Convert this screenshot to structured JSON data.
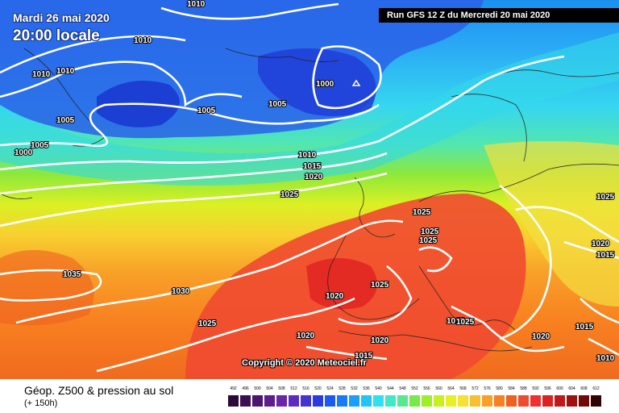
{
  "header": {
    "date_line": "Mardi 26 mai 2020",
    "time_line": "20:00 locale",
    "run_info": "Run GFS 12 Z du Mercredi 20 mai 2020"
  },
  "footer": {
    "product_title": "Géop. Z500 & pression au sol",
    "lead_time": "(+ 150h)",
    "copyright": "Copyright © 2020 Meteociel.fr"
  },
  "isobar_labels": [
    "1010",
    "1010",
    "1010",
    "1010",
    "1005",
    "1000",
    "1005",
    "1005",
    "1000",
    "1005",
    "1010",
    "1015",
    "1020",
    "1025",
    "1025",
    "1025",
    "1025",
    "1035",
    "1030",
    "1025",
    "1020",
    "1025",
    "1020",
    "1020",
    "1015",
    "1015",
    "1025",
    "1025",
    "1020",
    "1015",
    "1020",
    "1015",
    "1010"
  ],
  "legend": {
    "labels": [
      "492",
      "496",
      "500",
      "504",
      "508",
      "512",
      "516",
      "520",
      "524",
      "528",
      "532",
      "536",
      "540",
      "544",
      "548",
      "552",
      "556",
      "560",
      "564",
      "568",
      "572",
      "576",
      "580",
      "584",
      "588",
      "592",
      "596",
      "600",
      "604",
      "608",
      "612"
    ],
    "colors": [
      "#2b0a3a",
      "#3c0f55",
      "#4e1570",
      "#5f1c8c",
      "#6a25a8",
      "#5c2cc0",
      "#4434d0",
      "#2a3ce0",
      "#1a5af0",
      "#1a7cf5",
      "#1aa0f8",
      "#22c4f8",
      "#2ee0f0",
      "#40e8c8",
      "#58e890",
      "#78ea48",
      "#a0ee28",
      "#c8f020",
      "#e8f020",
      "#f8e030",
      "#f8c030",
      "#f8a028",
      "#f88020",
      "#f06020",
      "#f04a30",
      "#f03030",
      "#e02020",
      "#c01818",
      "#a01010",
      "#700a0a",
      "#300404"
    ]
  }
}
